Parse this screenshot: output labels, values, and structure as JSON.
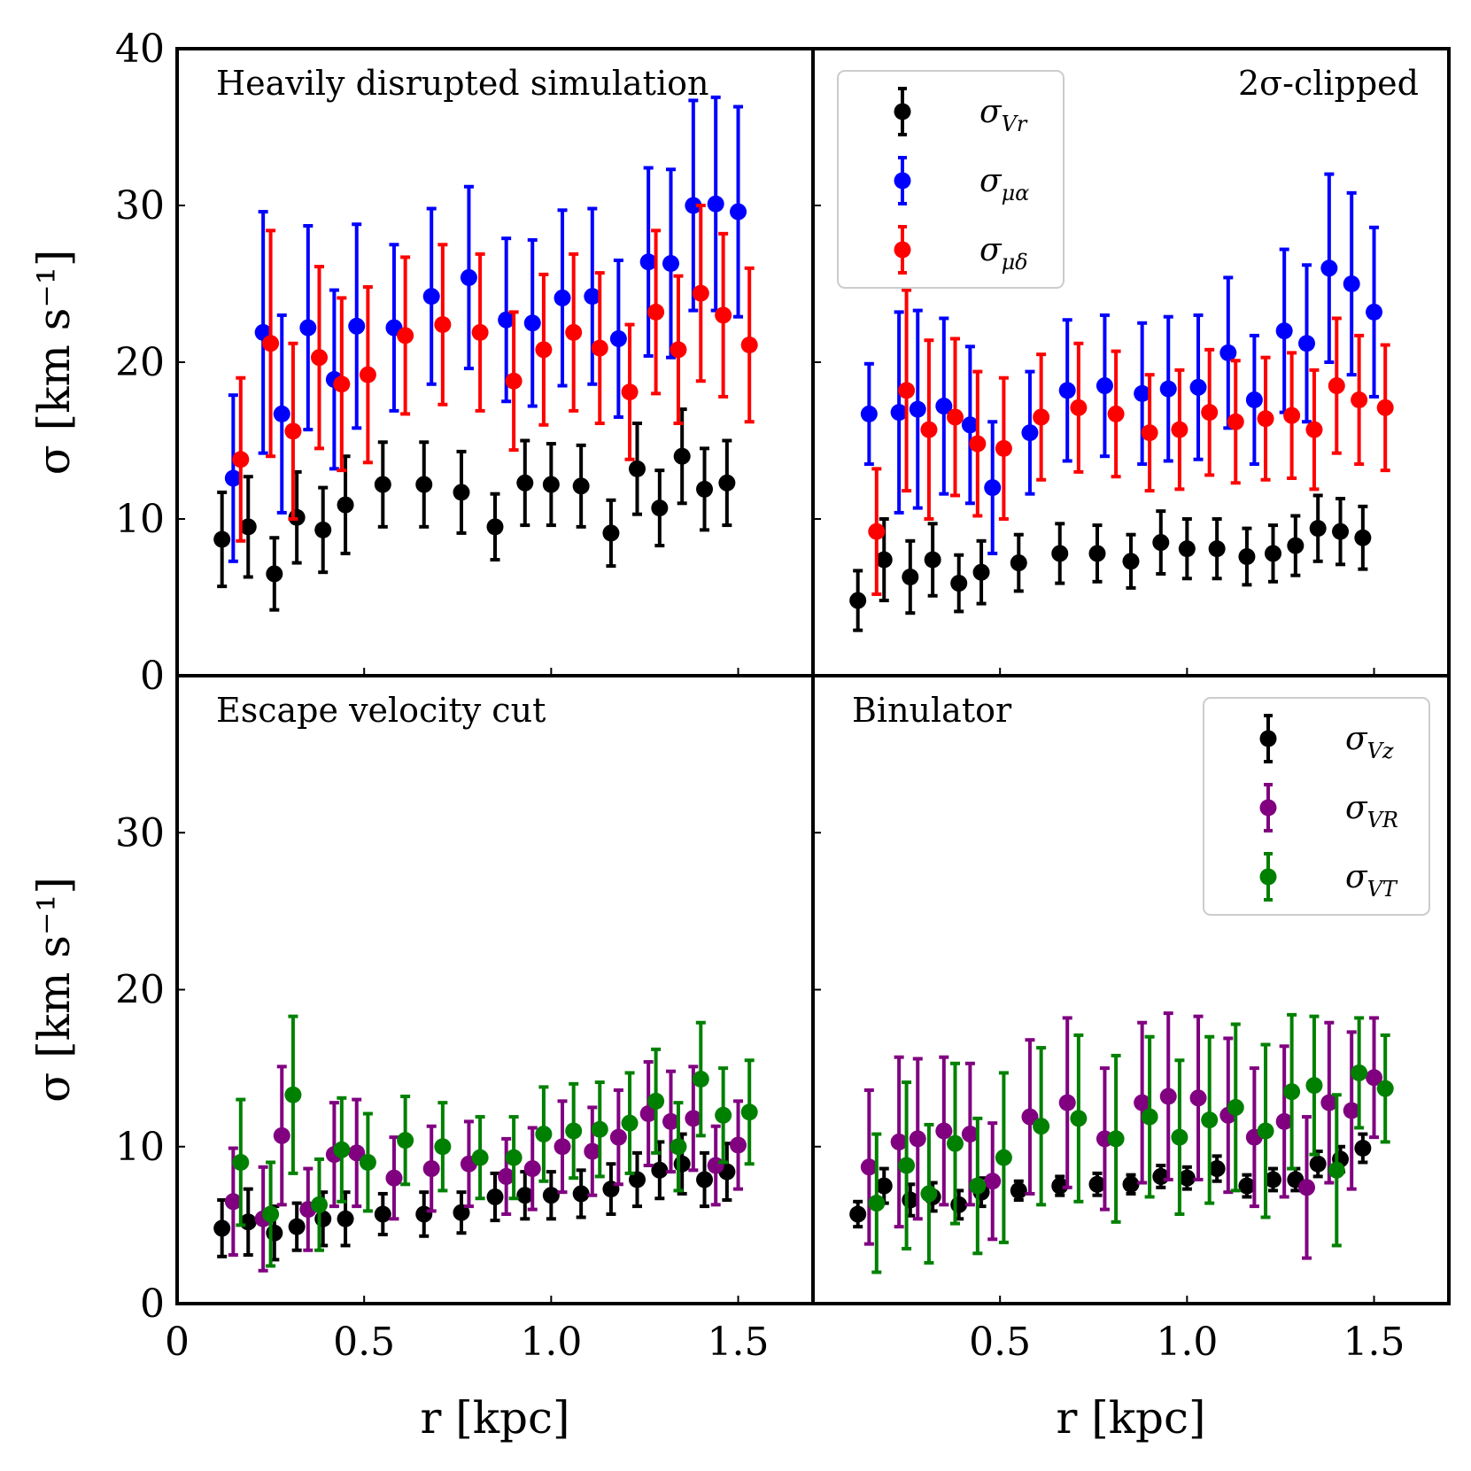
{
  "chart_data": {
    "type": "scatter",
    "subtype": "errorbar-grid-2x2",
    "xlabel": "r [kpc]",
    "ylabel": "σ [km s⁻¹]",
    "xlim": [
      0,
      1.7
    ],
    "ylim": [
      0,
      40
    ],
    "xticks": [
      0,
      0.5,
      1.0,
      1.5
    ],
    "xtick_labels": [
      "0",
      "0.5",
      "1.0",
      "1.5"
    ],
    "xtick_labels_right": [
      "",
      "0.5",
      "1.0",
      "1.5"
    ],
    "yticks": [
      0,
      10,
      20,
      30,
      40
    ],
    "ytick_labels_top": [
      "0",
      "10",
      "20",
      "30",
      "40"
    ],
    "ytick_labels_bottom": [
      "0",
      "10",
      "20",
      "30",
      ""
    ],
    "panels": [
      {
        "id": "top-left",
        "title": "Heavily disrupted simulation",
        "title_align": "left",
        "series": [
          {
            "name": "σ_Vr",
            "color": "#000000",
            "x": [
              0.12,
              0.19,
              0.26,
              0.32,
              0.39,
              0.45,
              0.55,
              0.66,
              0.76,
              0.85,
              0.93,
              1.0,
              1.08,
              1.16,
              1.23,
              1.29,
              1.35,
              1.41,
              1.47
            ],
            "y": [
              8.7,
              9.5,
              6.5,
              10.1,
              9.3,
              10.9,
              12.2,
              12.2,
              11.7,
              9.5,
              12.3,
              12.2,
              12.1,
              9.1,
              13.2,
              10.7,
              14.0,
              11.9,
              12.3
            ],
            "err": [
              3.0,
              3.2,
              2.3,
              2.9,
              2.7,
              3.1,
              2.7,
              2.7,
              2.6,
              2.1,
              2.7,
              2.6,
              2.6,
              2.1,
              2.9,
              2.4,
              3.0,
              2.6,
              2.7
            ]
          },
          {
            "name": "σ_μα",
            "color": "#0000ff",
            "x": [
              0.15,
              0.23,
              0.28,
              0.35,
              0.42,
              0.48,
              0.58,
              0.68,
              0.78,
              0.88,
              0.95,
              1.03,
              1.11,
              1.18,
              1.26,
              1.32,
              1.38,
              1.44,
              1.5
            ],
            "y": [
              12.6,
              21.9,
              16.7,
              22.2,
              18.9,
              22.3,
              22.2,
              24.2,
              25.4,
              22.7,
              22.5,
              24.1,
              24.2,
              21.5,
              26.4,
              26.3,
              30.0,
              30.1,
              29.6
            ],
            "err": [
              5.3,
              7.7,
              6.3,
              6.5,
              5.7,
              6.5,
              5.3,
              5.6,
              5.8,
              5.2,
              5.3,
              5.6,
              5.6,
              5.0,
              6.0,
              6.0,
              6.7,
              6.8,
              6.7
            ]
          },
          {
            "name": "σ_μδ",
            "color": "#ff0000",
            "x": [
              0.17,
              0.25,
              0.31,
              0.38,
              0.44,
              0.51,
              0.61,
              0.71,
              0.81,
              0.9,
              0.98,
              1.06,
              1.13,
              1.21,
              1.28,
              1.34,
              1.4,
              1.46,
              1.53
            ],
            "y": [
              13.8,
              21.2,
              15.6,
              20.3,
              18.6,
              19.2,
              21.7,
              22.4,
              21.9,
              18.8,
              20.8,
              21.9,
              20.9,
              18.1,
              23.2,
              20.8,
              24.4,
              23.0,
              21.1
            ],
            "err": [
              5.2,
              7.2,
              5.6,
              5.8,
              5.5,
              5.6,
              5.0,
              5.1,
              5.0,
              4.4,
              4.8,
              5.0,
              4.8,
              4.3,
              5.2,
              4.7,
              5.6,
              5.2,
              4.9
            ]
          }
        ]
      },
      {
        "id": "top-right",
        "title": "2σ-clipped",
        "title_align": "right",
        "series": [
          {
            "name": "σ_Vr",
            "color": "#000000",
            "x": [
              0.12,
              0.19,
              0.26,
              0.32,
              0.39,
              0.45,
              0.55,
              0.66,
              0.76,
              0.85,
              0.93,
              1.0,
              1.08,
              1.16,
              1.23,
              1.29,
              1.35,
              1.41,
              1.47
            ],
            "y": [
              4.8,
              7.4,
              6.3,
              7.4,
              5.9,
              6.6,
              7.2,
              7.8,
              7.8,
              7.3,
              8.5,
              8.1,
              8.1,
              7.6,
              7.8,
              8.3,
              9.4,
              9.2,
              8.8
            ],
            "err": [
              1.9,
              2.6,
              2.3,
              2.3,
              1.8,
              2.0,
              1.8,
              1.9,
              1.8,
              1.7,
              2.0,
              1.9,
              1.9,
              1.8,
              1.8,
              1.9,
              2.1,
              2.1,
              2.0
            ]
          },
          {
            "name": "σ_μα",
            "color": "#0000ff",
            "x": [
              0.15,
              0.23,
              0.28,
              0.35,
              0.42,
              0.48,
              0.58,
              0.68,
              0.78,
              0.88,
              0.95,
              1.03,
              1.11,
              1.18,
              1.26,
              1.32,
              1.38,
              1.44,
              1.5
            ],
            "y": [
              16.7,
              16.8,
              17.0,
              17.2,
              16.0,
              12.0,
              15.5,
              18.2,
              18.5,
              18.0,
              18.3,
              18.4,
              20.6,
              17.6,
              22.0,
              21.2,
              26.0,
              25.0,
              23.2
            ],
            "err": [
              3.2,
              6.4,
              6.3,
              5.6,
              5.0,
              4.2,
              3.9,
              4.5,
              4.5,
              4.5,
              4.6,
              4.6,
              4.8,
              4.1,
              5.2,
              5.0,
              6.0,
              5.8,
              5.4
            ]
          },
          {
            "name": "σ_μδ",
            "color": "#ff0000",
            "x": [
              0.17,
              0.25,
              0.31,
              0.38,
              0.44,
              0.51,
              0.61,
              0.71,
              0.81,
              0.9,
              0.98,
              1.06,
              1.13,
              1.21,
              1.28,
              1.34,
              1.4,
              1.46,
              1.53
            ],
            "y": [
              9.2,
              18.2,
              15.7,
              16.5,
              14.8,
              14.5,
              16.5,
              17.1,
              16.7,
              15.5,
              15.7,
              16.8,
              16.2,
              16.4,
              16.6,
              15.7,
              18.5,
              17.6,
              17.1
            ],
            "err": [
              4.0,
              6.4,
              5.7,
              5.0,
              4.6,
              4.5,
              4.0,
              4.1,
              4.0,
              3.7,
              3.8,
              4.0,
              3.9,
              3.9,
              4.0,
              3.8,
              4.3,
              4.1,
              4.0
            ]
          }
        ],
        "legend": {
          "position": "top-left",
          "entries": [
            {
              "label": "σVr",
              "base": "σ",
              "sub": "Vr",
              "color": "#000000"
            },
            {
              "label": "σμα",
              "base": "σ",
              "sub": "μα",
              "color": "#0000ff"
            },
            {
              "label": "σμδ",
              "base": "σ",
              "sub": "μδ",
              "color": "#ff0000"
            }
          ]
        }
      },
      {
        "id": "bottom-left",
        "title": "Escape velocity cut",
        "title_align": "left",
        "series": [
          {
            "name": "σ_Vz",
            "color": "#000000",
            "x": [
              0.12,
              0.19,
              0.26,
              0.32,
              0.39,
              0.45,
              0.55,
              0.66,
              0.76,
              0.85,
              0.93,
              1.0,
              1.08,
              1.16,
              1.23,
              1.29,
              1.35,
              1.41,
              1.47
            ],
            "y": [
              4.8,
              5.2,
              4.5,
              4.9,
              5.4,
              5.4,
              5.7,
              5.7,
              5.8,
              6.8,
              6.9,
              6.9,
              7.0,
              7.3,
              7.9,
              8.5,
              8.9,
              7.9,
              8.4
            ],
            "err": [
              1.8,
              2.1,
              1.7,
              1.5,
              1.7,
              1.7,
              1.3,
              1.4,
              1.3,
              1.5,
              1.5,
              1.5,
              1.5,
              1.6,
              1.7,
              1.8,
              1.9,
              1.7,
              1.8
            ]
          },
          {
            "name": "σ_VR",
            "color": "#800080",
            "x": [
              0.15,
              0.23,
              0.28,
              0.35,
              0.42,
              0.48,
              0.58,
              0.68,
              0.78,
              0.88,
              0.95,
              1.03,
              1.11,
              1.18,
              1.26,
              1.32,
              1.38,
              1.44,
              1.5
            ],
            "y": [
              6.5,
              5.4,
              10.7,
              6.0,
              9.5,
              9.6,
              8.0,
              8.6,
              8.9,
              8.1,
              8.6,
              10.0,
              9.7,
              10.6,
              12.1,
              11.6,
              11.8,
              8.8,
              10.1
            ],
            "err": [
              3.4,
              3.3,
              4.4,
              2.6,
              3.3,
              3.4,
              2.6,
              2.7,
              2.7,
              2.4,
              2.6,
              2.9,
              2.8,
              3.0,
              3.3,
              3.2,
              3.3,
              2.5,
              2.8
            ]
          },
          {
            "name": "σ_VT",
            "color": "#008000",
            "x": [
              0.17,
              0.25,
              0.31,
              0.38,
              0.44,
              0.51,
              0.61,
              0.71,
              0.81,
              0.9,
              0.98,
              1.06,
              1.13,
              1.21,
              1.28,
              1.34,
              1.4,
              1.46,
              1.53
            ],
            "y": [
              9.0,
              5.7,
              13.3,
              6.3,
              9.8,
              9.0,
              10.4,
              10.0,
              9.3,
              9.3,
              10.8,
              11.0,
              11.1,
              11.5,
              12.9,
              10.0,
              14.3,
              12.0,
              12.2
            ],
            "err": [
              4.0,
              3.3,
              5.0,
              2.9,
              3.3,
              3.1,
              2.8,
              2.8,
              2.6,
              2.6,
              3.0,
              3.0,
              3.0,
              3.2,
              3.3,
              2.8,
              3.6,
              3.0,
              3.3
            ]
          }
        ]
      },
      {
        "id": "bottom-right",
        "title": "Binulator",
        "title_align": "left",
        "series": [
          {
            "name": "σ_Vz",
            "color": "#000000",
            "x": [
              0.12,
              0.19,
              0.26,
              0.32,
              0.39,
              0.45,
              0.55,
              0.66,
              0.76,
              0.85,
              0.93,
              1.0,
              1.08,
              1.16,
              1.23,
              1.29,
              1.35,
              1.41,
              1.47
            ],
            "y": [
              5.7,
              7.5,
              6.6,
              6.8,
              6.3,
              7.1,
              7.2,
              7.5,
              7.6,
              7.6,
              8.1,
              8.0,
              8.6,
              7.5,
              7.9,
              7.9,
              8.9,
              9.2,
              9.9
            ],
            "err": [
              0.8,
              1.1,
              1.0,
              0.9,
              0.9,
              0.9,
              0.6,
              0.6,
              0.7,
              0.6,
              0.7,
              0.7,
              0.8,
              0.7,
              0.7,
              0.7,
              0.8,
              0.8,
              0.9
            ]
          },
          {
            "name": "σ_VR",
            "color": "#800080",
            "x": [
              0.15,
              0.23,
              0.28,
              0.35,
              0.42,
              0.48,
              0.58,
              0.68,
              0.78,
              0.88,
              0.95,
              1.03,
              1.11,
              1.18,
              1.26,
              1.32,
              1.38,
              1.44,
              1.5
            ],
            "y": [
              8.7,
              10.3,
              10.5,
              11.0,
              10.8,
              7.8,
              11.9,
              12.8,
              10.5,
              12.8,
              13.2,
              13.1,
              12.0,
              10.6,
              11.6,
              7.4,
              12.8,
              12.3,
              14.4
            ],
            "err": [
              4.9,
              5.4,
              5.1,
              4.7,
              4.5,
              3.7,
              4.9,
              5.4,
              4.5,
              5.1,
              5.3,
              5.2,
              4.9,
              4.4,
              4.8,
              4.5,
              5.1,
              5.0,
              3.8
            ]
          },
          {
            "name": "σ_VT",
            "color": "#008000",
            "x": [
              0.17,
              0.25,
              0.31,
              0.38,
              0.44,
              0.51,
              0.61,
              0.71,
              0.81,
              0.9,
              0.98,
              1.06,
              1.13,
              1.21,
              1.28,
              1.34,
              1.4,
              1.46,
              1.53
            ],
            "y": [
              6.4,
              8.8,
              7.0,
              10.2,
              7.5,
              9.3,
              11.3,
              11.8,
              10.5,
              11.9,
              10.6,
              11.7,
              12.5,
              11.0,
              13.5,
              13.9,
              8.5,
              14.7,
              13.7
            ],
            "err": [
              4.4,
              5.3,
              4.4,
              5.1,
              4.3,
              5.4,
              5.0,
              5.3,
              5.3,
              5.1,
              4.9,
              5.3,
              5.3,
              5.5,
              4.9,
              4.4,
              4.8,
              3.5,
              3.4
            ]
          }
        ],
        "legend": {
          "position": "top-right",
          "entries": [
            {
              "label": "σVz",
              "base": "σ",
              "sub": "Vz",
              "color": "#000000"
            },
            {
              "label": "σVR",
              "base": "σ",
              "sub": "VR",
              "color": "#800080"
            },
            {
              "label": "σVT",
              "base": "σ",
              "sub": "VT",
              "color": "#008000"
            }
          ]
        }
      }
    ]
  }
}
